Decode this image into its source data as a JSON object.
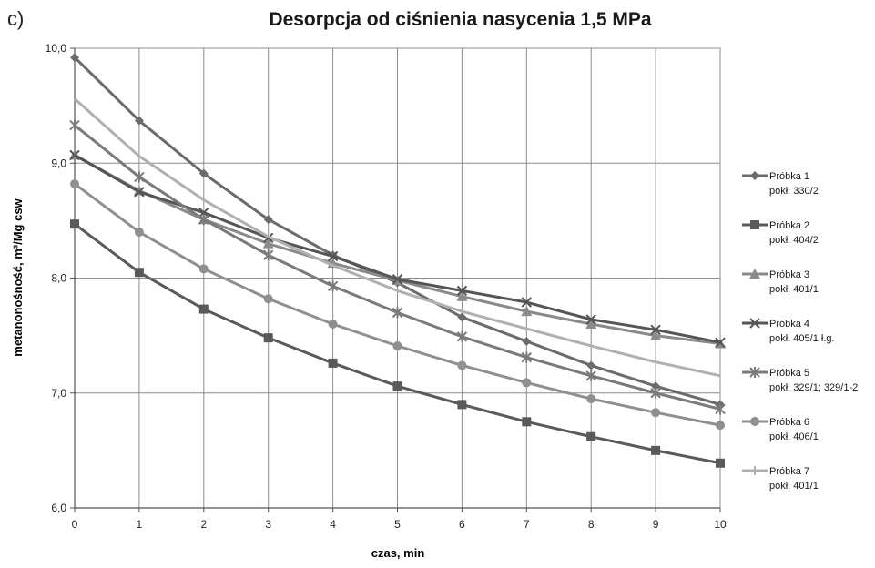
{
  "panel_label": "c)",
  "chart_data": {
    "type": "line",
    "title": "Desorpcja od ciśnienia nasycenia 1,5 MPa",
    "xlabel": "czas, min",
    "ylabel": "metanonośność, m³/Mg csw",
    "xlim": [
      0,
      10
    ],
    "ylim": [
      6.0,
      10.0
    ],
    "x_ticks": [
      "0",
      "1",
      "2",
      "3",
      "4",
      "5",
      "6",
      "7",
      "8",
      "9",
      "10"
    ],
    "y_ticks": [
      "6,0",
      "7,0",
      "8,0",
      "9,0",
      "10,0"
    ],
    "grid": true,
    "legend_position": "right",
    "x": [
      0,
      1,
      2,
      3,
      4,
      5,
      6,
      7,
      8,
      9,
      10
    ],
    "series": [
      {
        "name": "Próbka 1",
        "sub": "pokł. 330/2",
        "marker": "diamond",
        "color": "#6b6b6b",
        "values": [
          9.92,
          9.37,
          8.91,
          8.51,
          8.2,
          7.96,
          7.66,
          7.45,
          7.24,
          7.06,
          6.9
        ]
      },
      {
        "name": "Próbka 2",
        "sub": "pokł. 404/2",
        "marker": "square",
        "color": "#5a5a5a",
        "values": [
          8.47,
          8.05,
          7.73,
          7.48,
          7.26,
          7.06,
          6.9,
          6.75,
          6.62,
          6.5,
          6.39
        ]
      },
      {
        "name": "Próbka 3",
        "sub": "pokł. 401/1",
        "marker": "triangle",
        "color": "#8a8a8a",
        "values": [
          9.07,
          8.76,
          8.51,
          8.3,
          8.13,
          7.98,
          7.84,
          7.71,
          7.6,
          7.5,
          7.43
        ]
      },
      {
        "name": "Próbka 4",
        "sub": "pokł. 405/1 ł.g.",
        "marker": "x",
        "color": "#555555",
        "values": [
          9.07,
          8.75,
          8.57,
          8.35,
          8.19,
          7.99,
          7.89,
          7.79,
          7.64,
          7.55,
          7.44
        ]
      },
      {
        "name": "Próbka 5",
        "sub": "pokł. 329/1; 329/1-2",
        "marker": "asterisk",
        "color": "#7a7a7a",
        "values": [
          9.33,
          8.88,
          8.51,
          8.2,
          7.93,
          7.7,
          7.49,
          7.31,
          7.15,
          7.0,
          6.86
        ]
      },
      {
        "name": "Próbka 6",
        "sub": "pokł. 406/1",
        "marker": "circle",
        "color": "#8f8f8f",
        "values": [
          8.82,
          8.4,
          8.08,
          7.82,
          7.6,
          7.41,
          7.24,
          7.09,
          6.95,
          6.83,
          6.72
        ]
      },
      {
        "name": "Próbka 7",
        "sub": "pokł. 401/1",
        "marker": "plus",
        "color": "#b0b0b0",
        "values": [
          9.56,
          9.06,
          8.68,
          8.36,
          8.11,
          7.89,
          7.71,
          7.56,
          7.41,
          7.27,
          7.15
        ]
      }
    ]
  }
}
